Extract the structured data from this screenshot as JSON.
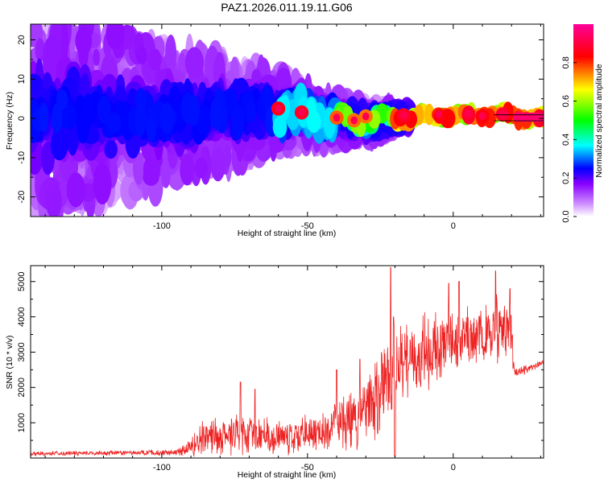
{
  "title": "PAZ1.2026.011.19.11.G06",
  "chart_data": [
    {
      "type": "heatmap",
      "xlabel": "Height of straight line (km)",
      "ylabel": "Frequency (Hz)",
      "xlim": [
        -145,
        31
      ],
      "ylim": [
        -25,
        24
      ],
      "xticks": [
        -100,
        -50,
        0
      ],
      "xtick_labels": [
        "-100",
        "-50",
        "0"
      ],
      "yticks": [
        -20,
        -10,
        0,
        10,
        20
      ],
      "ytick_labels": [
        "-20",
        "-10",
        "0",
        "10",
        "20"
      ],
      "colorbar": {
        "label": "Normalized spectral amplitude",
        "range": [
          0.0,
          1.0
        ],
        "ticks": [
          0.0,
          0.2,
          0.4,
          0.6,
          0.8
        ],
        "tick_labels": [
          "0.0",
          "0.2",
          "0.4",
          "0.6",
          "0.8"
        ],
        "colormap": [
          "#ffffff",
          "#9900ff",
          "#0000ff",
          "#00ffff",
          "#00ff00",
          "#ffff00",
          "#ff0000",
          "#ff0099"
        ]
      },
      "ridge": {
        "description_points_x": [
          -145,
          -120,
          -100,
          -80,
          -60,
          -40,
          -30,
          -20,
          -10,
          0,
          10,
          20,
          31
        ],
        "description_points_y": [
          1,
          1,
          0.5,
          1.5,
          2,
          0,
          -1,
          0,
          0.5,
          1,
          0.8,
          0.5,
          0
        ],
        "spread_hz_at_x": [
          [
            -145,
            12
          ],
          [
            -100,
            8
          ],
          [
            -60,
            4
          ],
          [
            -40,
            2
          ],
          [
            -20,
            0.8
          ],
          [
            0,
            0.5
          ],
          [
            31,
            0.3
          ]
        ]
      }
    },
    {
      "type": "line",
      "xlabel": "Height of straight line (km)",
      "ylabel": "SNR (10 * v/v)",
      "xlim": [
        -145,
        31
      ],
      "ylim": [
        0,
        5450
      ],
      "xticks": [
        -100,
        -50,
        0
      ],
      "xtick_labels": [
        "-100",
        "-50",
        "0"
      ],
      "yticks": [
        1000,
        2000,
        3000,
        4000,
        5000
      ],
      "ytick_labels": [
        "1000",
        "2000",
        "3000",
        "4000",
        "5000"
      ],
      "series": [
        {
          "name": "SNR",
          "color": "#ee2222",
          "envelope_x": [
            -145,
            -120,
            -95,
            -90,
            -85,
            -70,
            -55,
            -45,
            -40,
            -30,
            -25,
            -22,
            -20,
            -15,
            -10,
            -5,
            0,
            5,
            10,
            15,
            20,
            21,
            25,
            31
          ],
          "envelope_mean": [
            120,
            140,
            160,
            300,
            600,
            650,
            600,
            700,
            900,
            1300,
            1800,
            2500,
            2600,
            2700,
            3000,
            3200,
            3400,
            3500,
            3400,
            3600,
            3500,
            2400,
            2500,
            2700
          ],
          "envelope_amp": [
            60,
            60,
            80,
            250,
            500,
            500,
            450,
            500,
            700,
            900,
            1200,
            1500,
            1100,
            900,
            900,
            900,
            800,
            800,
            800,
            900,
            700,
            100,
            120,
            120
          ],
          "peaks": [
            [
              -21.5,
              5400
            ],
            [
              -20.5,
              4000
            ],
            [
              2,
              5000
            ],
            [
              14.5,
              5300
            ],
            [
              19.5,
              4800
            ],
            [
              -73,
              2150
            ],
            [
              -68,
              1950
            ],
            [
              -40,
              2500
            ],
            [
              -32,
              2800
            ],
            [
              -1.5,
              4950
            ]
          ]
        }
      ]
    }
  ]
}
